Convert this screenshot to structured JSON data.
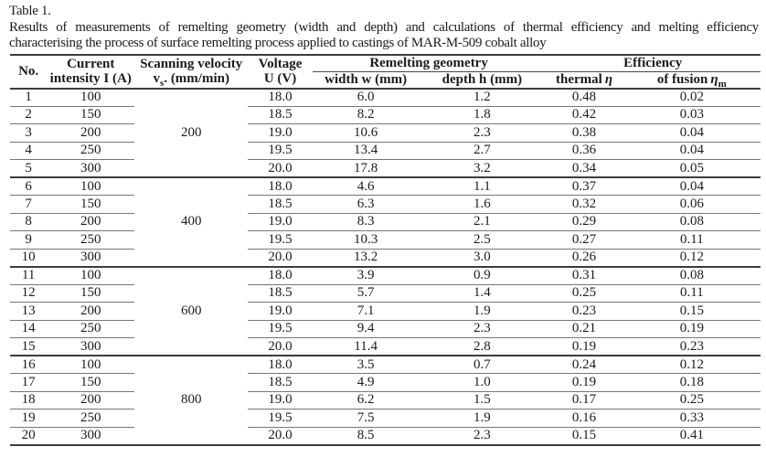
{
  "caption": {
    "label": "Table 1.",
    "line1": "Results of measurements of remelting geometry (width and depth) and calculations of thermal efficiency and melting efficiency",
    "line2": "characterising the process of surface remelting process applied to castings of MAR-M-509 cobalt alloy"
  },
  "table": {
    "headers": {
      "no": "No.",
      "current_line1": "Current",
      "current_line2": "intensity I (A)",
      "scanning_line1": "Scanning velocity",
      "scanning_v": "v",
      "scanning_sub": "s",
      "scanning_rest": ". (mm/min)",
      "voltage_line1": "Voltage",
      "voltage_line2": "U (V)",
      "remelting_group": "Remelting geometry",
      "width": "width w (mm)",
      "depth": "depth h (mm)",
      "efficiency_group": "Efficiency",
      "thermal_label": "thermal",
      "thermal_symbol": "η",
      "fusion_label": "of fusion",
      "fusion_symbol": "η",
      "fusion_sub": "m"
    },
    "groups": [
      {
        "velocity": "200",
        "rows": [
          {
            "no": "1",
            "current": "100",
            "voltage": "18.0",
            "width": "6.0",
            "depth": "1.2",
            "thermal": "0.48",
            "fusion": "0.02"
          },
          {
            "no": "2",
            "current": "150",
            "voltage": "18.5",
            "width": "8.2",
            "depth": "1.8",
            "thermal": "0.42",
            "fusion": "0.03"
          },
          {
            "no": "3",
            "current": "200",
            "voltage": "19.0",
            "width": "10.6",
            "depth": "2.3",
            "thermal": "0.38",
            "fusion": "0.04"
          },
          {
            "no": "4",
            "current": "250",
            "voltage": "19.5",
            "width": "13.4",
            "depth": "2.7",
            "thermal": "0.36",
            "fusion": "0.04"
          },
          {
            "no": "5",
            "current": "300",
            "voltage": "20.0",
            "width": "17.8",
            "depth": "3.2",
            "thermal": "0.34",
            "fusion": "0.05"
          }
        ]
      },
      {
        "velocity": "400",
        "rows": [
          {
            "no": "6",
            "current": "100",
            "voltage": "18.0",
            "width": "4.6",
            "depth": "1.1",
            "thermal": "0.37",
            "fusion": "0.04"
          },
          {
            "no": "7",
            "current": "150",
            "voltage": "18.5",
            "width": "6.3",
            "depth": "1.6",
            "thermal": "0.32",
            "fusion": "0.06"
          },
          {
            "no": "8",
            "current": "200",
            "voltage": "19.0",
            "width": "8.3",
            "depth": "2.1",
            "thermal": "0.29",
            "fusion": "0.08"
          },
          {
            "no": "9",
            "current": "250",
            "voltage": "19.5",
            "width": "10.3",
            "depth": "2.5",
            "thermal": "0.27",
            "fusion": "0.11"
          },
          {
            "no": "10",
            "current": "300",
            "voltage": "20.0",
            "width": "13.2",
            "depth": "3.0",
            "thermal": "0.26",
            "fusion": "0.12"
          }
        ]
      },
      {
        "velocity": "600",
        "rows": [
          {
            "no": "11",
            "current": "100",
            "voltage": "18.0",
            "width": "3.9",
            "depth": "0.9",
            "thermal": "0.31",
            "fusion": "0.08"
          },
          {
            "no": "12",
            "current": "150",
            "voltage": "18.5",
            "width": "5.7",
            "depth": "1.4",
            "thermal": "0.25",
            "fusion": "0.11"
          },
          {
            "no": "13",
            "current": "200",
            "voltage": "19.0",
            "width": "7.1",
            "depth": "1.9",
            "thermal": "0.23",
            "fusion": "0.15"
          },
          {
            "no": "14",
            "current": "250",
            "voltage": "19.5",
            "width": "9.4",
            "depth": "2.3",
            "thermal": "0.21",
            "fusion": "0.19"
          },
          {
            "no": "15",
            "current": "300",
            "voltage": "20.0",
            "width": "11.4",
            "depth": "2.8",
            "thermal": "0.19",
            "fusion": "0.23"
          }
        ]
      },
      {
        "velocity": "800",
        "rows": [
          {
            "no": "16",
            "current": "100",
            "voltage": "18.0",
            "width": "3.5",
            "depth": "0.7",
            "thermal": "0.24",
            "fusion": "0.12"
          },
          {
            "no": "17",
            "current": "150",
            "voltage": "18.5",
            "width": "4.9",
            "depth": "1.0",
            "thermal": "0.19",
            "fusion": "0.18"
          },
          {
            "no": "18",
            "current": "200",
            "voltage": "19.0",
            "width": "6.2",
            "depth": "1.5",
            "thermal": "0.17",
            "fusion": "0.25"
          },
          {
            "no": "19",
            "current": "250",
            "voltage": "19.5",
            "width": "7.5",
            "depth": "1.9",
            "thermal": "0.16",
            "fusion": "0.33"
          },
          {
            "no": "20",
            "current": "300",
            "voltage": "20.0",
            "width": "8.5",
            "depth": "2.3",
            "thermal": "0.15",
            "fusion": "0.41"
          }
        ]
      }
    ]
  }
}
